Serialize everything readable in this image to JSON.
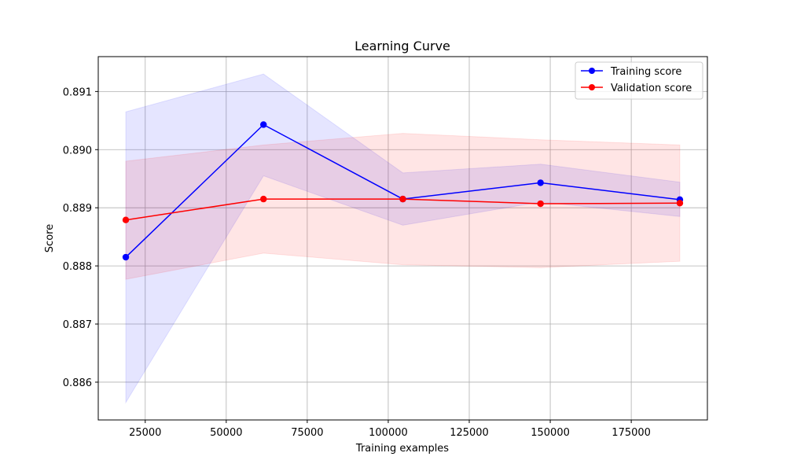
{
  "chart_data": {
    "type": "line",
    "title": "Learning Curve",
    "xlabel": "Training examples",
    "ylabel": "Score",
    "xlim": [
      10500,
      198500
    ],
    "ylim": [
      0.88535,
      0.8916
    ],
    "xticks": [
      25000,
      50000,
      75000,
      100000,
      125000,
      150000,
      175000
    ],
    "yticks": [
      0.886,
      0.887,
      0.888,
      0.889,
      0.89,
      0.891
    ],
    "xtick_labels": [
      "25000",
      "50000",
      "75000",
      "100000",
      "125000",
      "150000",
      "175000"
    ],
    "ytick_labels": [
      "0.886",
      "0.887",
      "0.888",
      "0.889",
      "0.890",
      "0.891"
    ],
    "grid": true,
    "legend_position": "top-right",
    "x": [
      19000,
      61500,
      104500,
      147000,
      190000
    ],
    "series": [
      {
        "name": "Training score",
        "color": "#0000ff",
        "values": [
          0.88815,
          0.89043,
          0.88915,
          0.88943,
          0.88914
        ],
        "band_upper": [
          0.89065,
          0.8913,
          0.8896,
          0.88975,
          0.88944
        ],
        "band_lower": [
          0.88565,
          0.88955,
          0.8887,
          0.8891,
          0.88885
        ]
      },
      {
        "name": "Validation score",
        "color": "#ff0000",
        "values": [
          0.88879,
          0.88915,
          0.88915,
          0.88907,
          0.88908
        ],
        "band_upper": [
          0.8898,
          0.89008,
          0.89028,
          0.89017,
          0.89008
        ],
        "band_lower": [
          0.88777,
          0.88822,
          0.88802,
          0.88797,
          0.88808
        ]
      }
    ]
  }
}
